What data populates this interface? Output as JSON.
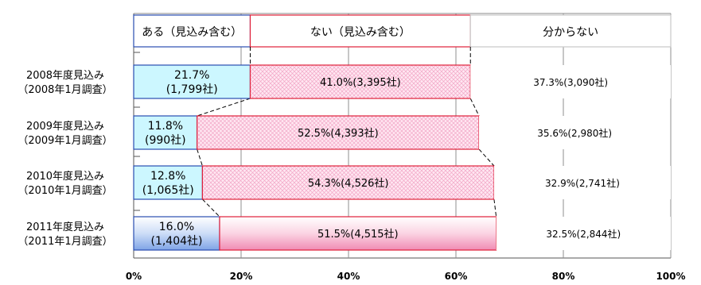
{
  "chart_data": {
    "type": "bar",
    "stacked": true,
    "orientation": "horizontal",
    "xlim": [
      0,
      100
    ],
    "x_ticks": [
      "0%",
      "20%",
      "40%",
      "60%",
      "80%",
      "100%"
    ],
    "grid": true,
    "legend_position": "top",
    "categories": [
      [
        "2008年度見込み",
        "（2008年1月調査）"
      ],
      [
        "2009年度見込み",
        "（2009年1月調査）"
      ],
      [
        "2010年度見込み",
        "（2010年1月調査）"
      ],
      [
        "2011年度見込み",
        "（2011年1月調査）"
      ]
    ],
    "series": [
      {
        "name": "ある（見込み含む）",
        "values": [
          21.7,
          11.8,
          12.8,
          16.0
        ],
        "labels": [
          [
            "21.7%",
            "(1,799社)"
          ],
          [
            "11.8%",
            "(990社)"
          ],
          [
            "12.8%",
            "(1,065社)"
          ],
          [
            "16.0%",
            "(1,404社)"
          ]
        ],
        "color": "#ccf7ff",
        "border": "#2a4eb0"
      },
      {
        "name": "ない（見込み含む）",
        "values": [
          41.0,
          52.5,
          54.3,
          51.5
        ],
        "labels": [
          "41.0%(3,395社)",
          "52.5%(4,393社)",
          "54.3%(4,526社)",
          "51.5%(4,515社)"
        ],
        "color": "#ffe0ee",
        "border": "#e0203a"
      },
      {
        "name": "分からない",
        "values": [
          37.3,
          35.6,
          32.9,
          32.5
        ],
        "labels": [
          "37.3%(3,090社)",
          "35.6%(2,980社)",
          "32.9%(2,741社)",
          "32.5%(2,844社)"
        ],
        "color": "#ffffff",
        "border": "#d0d0d0"
      }
    ]
  }
}
